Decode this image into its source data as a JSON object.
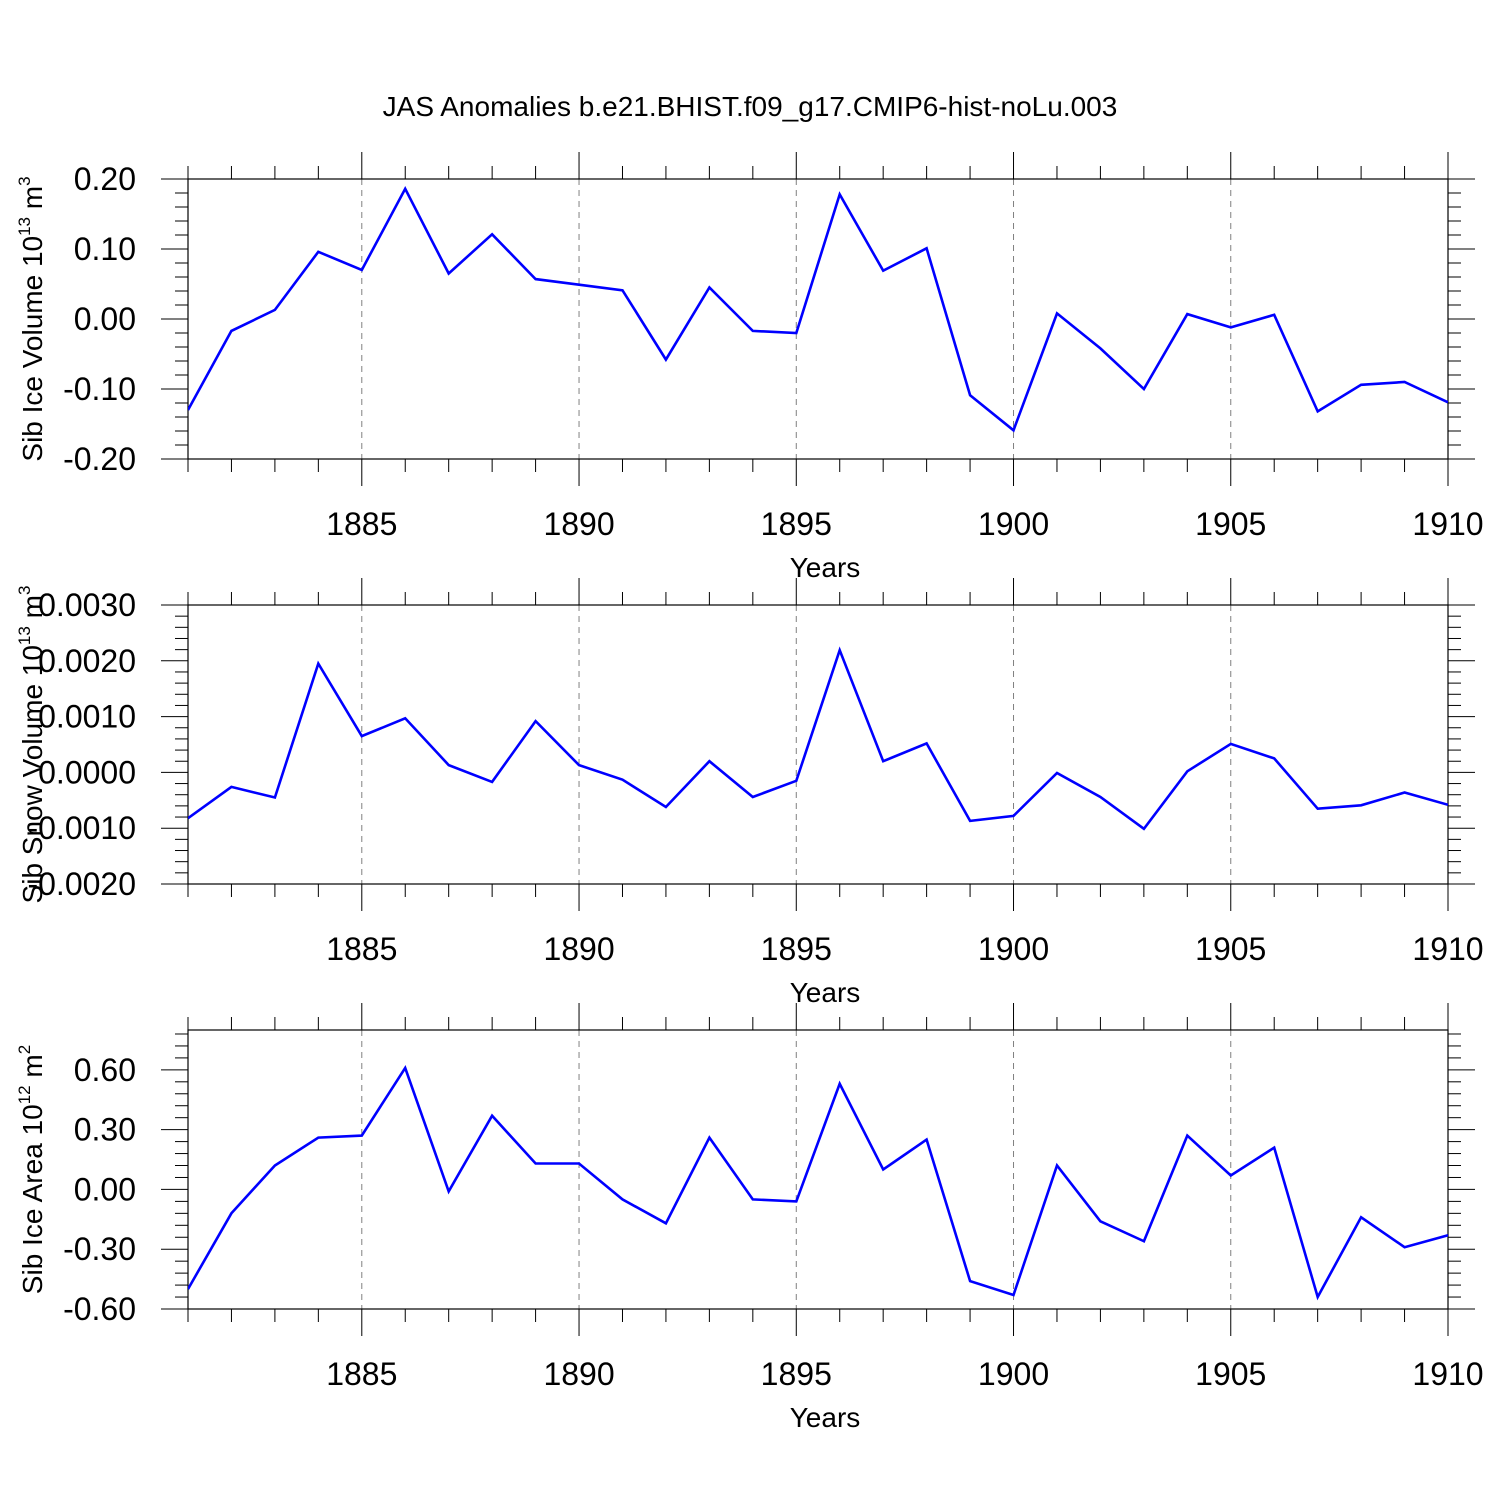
{
  "title": "JAS Anomalies b.e21.BHIST.f09_g17.CMIP6-hist-noLu.003",
  "colors": {
    "line": "#0000ff",
    "axis": "#000000",
    "grid": "#808080",
    "background": "#ffffff"
  },
  "chart_data": [
    {
      "type": "line",
      "title": "JAS Anomalies b.e21.BHIST.f09_g17.CMIP6-hist-noLu.003",
      "xlabel": "Years",
      "ylabel": {
        "text": "Sib Ice Volume 10",
        "exp": "13",
        "unit": " m",
        "unit_exp": "3"
      },
      "xlim": [
        1881,
        1910
      ],
      "ylim": [
        -0.2,
        0.2
      ],
      "xticks": [
        1885,
        1890,
        1895,
        1900,
        1905,
        1910
      ],
      "xtick_labels": [
        "1885",
        "1890",
        "1895",
        "1900",
        "1905",
        "1910"
      ],
      "yticks": [
        -0.2,
        -0.1,
        0.0,
        0.1,
        0.2
      ],
      "ytick_labels": [
        "-0.20",
        "-0.10",
        "0.00",
        "0.10",
        "0.20"
      ],
      "grid": "vertical dashed at major x ticks",
      "series": [
        {
          "name": "Sib Ice Volume",
          "x": [
            1881,
            1882,
            1883,
            1884,
            1885,
            1886,
            1887,
            1888,
            1889,
            1890,
            1891,
            1892,
            1893,
            1894,
            1895,
            1896,
            1897,
            1898,
            1899,
            1900,
            1901,
            1902,
            1903,
            1904,
            1905,
            1906,
            1907,
            1908,
            1909,
            1910
          ],
          "values": [
            -0.13,
            -0.017,
            0.013,
            0.096,
            0.07,
            0.186,
            0.065,
            0.121,
            0.057,
            0.049,
            0.041,
            -0.058,
            0.045,
            -0.017,
            -0.02,
            0.178,
            0.069,
            0.101,
            -0.109,
            -0.159,
            0.008,
            -0.042,
            -0.1,
            0.007,
            -0.012,
            0.006,
            -0.132,
            -0.094,
            -0.09,
            -0.119
          ]
        }
      ]
    },
    {
      "type": "line",
      "xlabel": "Years",
      "ylabel": {
        "text": "Sib Snow Volume 10",
        "exp": "13",
        "unit": " m",
        "unit_exp": "3"
      },
      "xlim": [
        1881,
        1910
      ],
      "ylim": [
        -0.002,
        0.003
      ],
      "xticks": [
        1885,
        1890,
        1895,
        1900,
        1905,
        1910
      ],
      "xtick_labels": [
        "1885",
        "1890",
        "1895",
        "1900",
        "1905",
        "1910"
      ],
      "yticks": [
        -0.002,
        -0.001,
        0.0,
        0.001,
        0.002,
        0.003
      ],
      "ytick_labels": [
        "-0.0020",
        "-0.0010",
        "0.0000",
        "0.0010",
        "0.0020",
        "0.0030"
      ],
      "grid": "vertical dashed at major x ticks",
      "series": [
        {
          "name": "Sib Snow Volume",
          "x": [
            1881,
            1882,
            1883,
            1884,
            1885,
            1886,
            1887,
            1888,
            1889,
            1890,
            1891,
            1892,
            1893,
            1894,
            1895,
            1896,
            1897,
            1898,
            1899,
            1900,
            1901,
            1902,
            1903,
            1904,
            1905,
            1906,
            1907,
            1908,
            1909,
            1910
          ],
          "values": [
            -0.00082,
            -0.00026,
            -0.00045,
            0.00195,
            0.00065,
            0.00097,
            0.00013,
            -0.00017,
            0.00092,
            0.00013,
            -0.00013,
            -0.00062,
            0.0002,
            -0.00044,
            -0.00015,
            0.00219,
            0.0002,
            0.00052,
            -0.00087,
            -0.00078,
            -1e-05,
            -0.00044,
            -0.00101,
            2e-05,
            0.00051,
            0.00025,
            -0.00065,
            -0.00059,
            -0.00036,
            -0.00058
          ]
        }
      ]
    },
    {
      "type": "line",
      "xlabel": "Years",
      "ylabel": {
        "text": "Sib Ice Area 10",
        "exp": "12",
        "unit": " m",
        "unit_exp": "2"
      },
      "xlim": [
        1881,
        1910
      ],
      "ylim": [
        -0.6,
        0.8
      ],
      "xticks": [
        1885,
        1890,
        1895,
        1900,
        1905,
        1910
      ],
      "xtick_labels": [
        "1885",
        "1890",
        "1895",
        "1900",
        "1905",
        "1910"
      ],
      "yticks": [
        -0.6,
        -0.3,
        0.0,
        0.3,
        0.6
      ],
      "ytick_labels": [
        "-0.60",
        "-0.30",
        "0.00",
        "0.30",
        "0.60"
      ],
      "grid": "vertical dashed at major x ticks",
      "series": [
        {
          "name": "Sib Ice Area",
          "x": [
            1881,
            1882,
            1883,
            1884,
            1885,
            1886,
            1887,
            1888,
            1889,
            1890,
            1891,
            1892,
            1893,
            1894,
            1895,
            1896,
            1897,
            1898,
            1899,
            1900,
            1901,
            1902,
            1903,
            1904,
            1905,
            1906,
            1907,
            1908,
            1909,
            1910
          ],
          "values": [
            -0.5,
            -0.12,
            0.12,
            0.26,
            0.27,
            0.61,
            -0.01,
            0.37,
            0.13,
            0.13,
            -0.05,
            -0.17,
            0.26,
            -0.05,
            -0.06,
            0.53,
            0.1,
            0.25,
            -0.46,
            -0.53,
            0.12,
            -0.16,
            -0.26,
            0.27,
            0.07,
            0.21,
            -0.54,
            -0.14,
            -0.29,
            -0.23
          ]
        }
      ]
    }
  ]
}
